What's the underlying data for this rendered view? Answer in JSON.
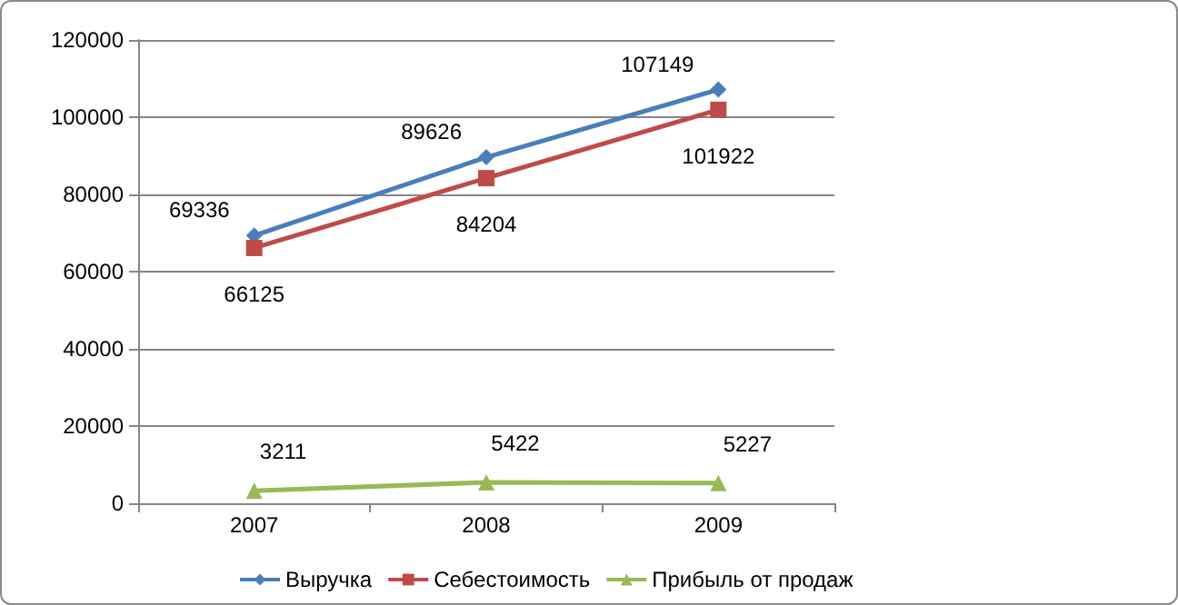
{
  "chart_data": {
    "type": "line",
    "categories": [
      "2007",
      "2008",
      "2009"
    ],
    "series": [
      {
        "name": "Выручка",
        "color": "#4a7ebb",
        "marker": "diamond",
        "values": [
          69336,
          89626,
          107149
        ]
      },
      {
        "name": "Себестоимость",
        "color": "#be4b48",
        "marker": "square",
        "values": [
          66125,
          84204,
          101922
        ]
      },
      {
        "name": "Прибыль от продаж",
        "color": "#98b954",
        "marker": "triangle",
        "values": [
          3211,
          5422,
          5227
        ]
      }
    ],
    "ylim": [
      0,
      120000
    ],
    "yticks": [
      0,
      20000,
      40000,
      60000,
      80000,
      100000,
      120000
    ],
    "grid": "y",
    "legend": "bottom",
    "data_labels": true,
    "line_style": "solid"
  }
}
